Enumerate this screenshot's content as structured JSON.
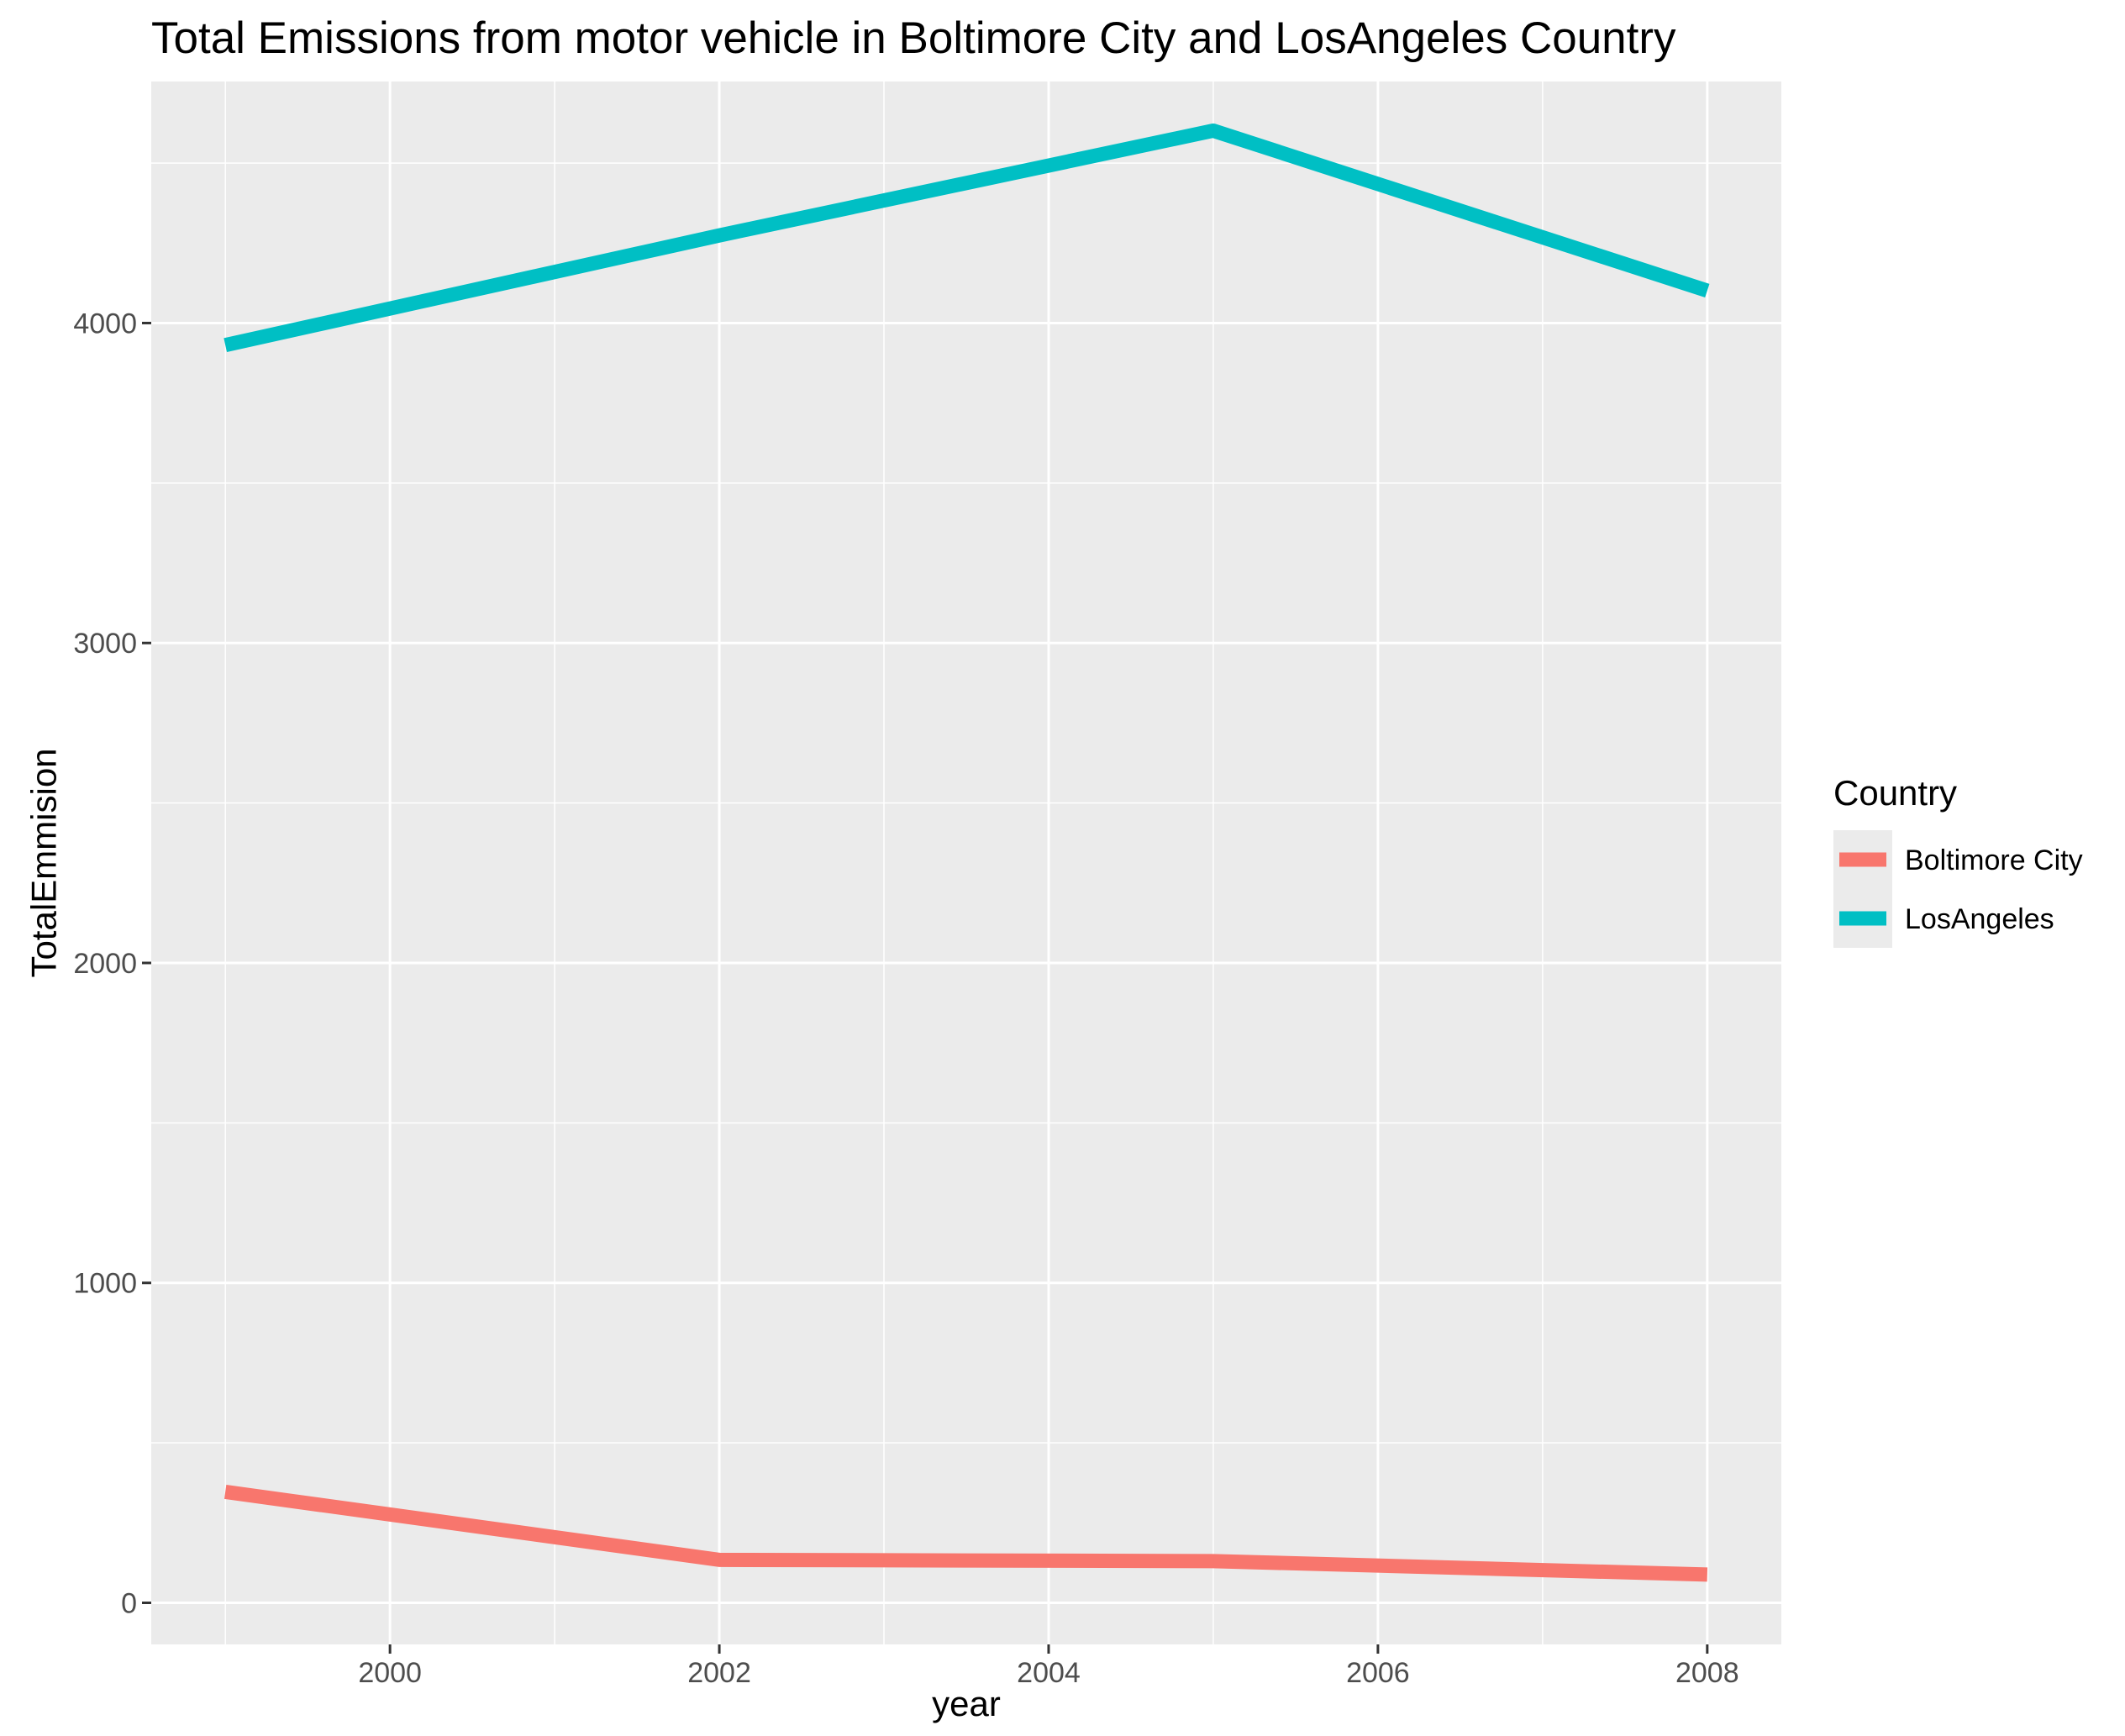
{
  "chart_data": {
    "type": "line",
    "title": "Total Emissions from motor vehicle in Boltimore City and LosAngeles Country",
    "xlabel": "year",
    "ylabel": "TotalEmmision",
    "x": [
      1999,
      2002,
      2005,
      2008
    ],
    "xlim": [
      1998.55,
      2008.45
    ],
    "ylim": [
      -130,
      4755
    ],
    "x_ticks": [
      "2000",
      "2002",
      "2004",
      "2006",
      "2008"
    ],
    "y_ticks": [
      "0",
      "1000",
      "2000",
      "3000",
      "4000"
    ],
    "grid": true,
    "legend": {
      "title": "Country",
      "position": "right"
    },
    "series": [
      {
        "name": "Boltimore City",
        "color": "#F8766D",
        "values": [
          346.8,
          134.3,
          130.4,
          88.3
        ]
      },
      {
        "name": "LosAngeles",
        "color": "#00BFC4",
        "values": [
          3931.1,
          4274.0,
          4601.4,
          4101.3
        ]
      }
    ]
  }
}
